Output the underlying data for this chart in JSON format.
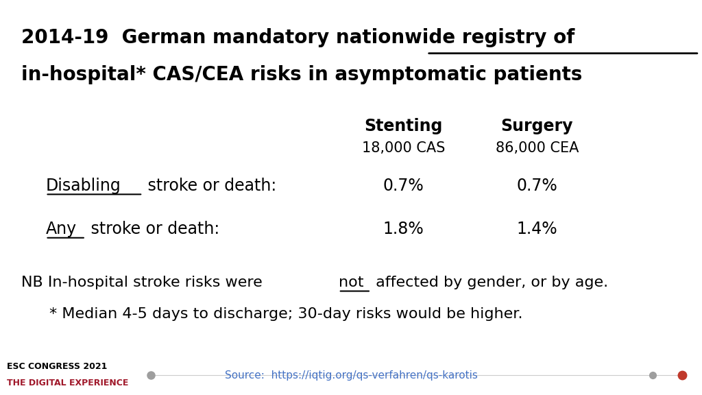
{
  "title_line1": "2014-19  German mandatory nationwide registry of",
  "title_line2": "in-hospital* CAS/CEA risks in asymptomatic patients",
  "col1_header": "Stenting",
  "col2_header": "Surgery",
  "col1_subheader": "18,000 CAS",
  "col2_subheader": "86,000 CEA",
  "row1_underline": "Disabling",
  "row1_rest": " stroke or death:",
  "row1_col1": "0.7%",
  "row1_col2": "0.7%",
  "row2_underline": "Any",
  "row2_rest": " stroke or death:",
  "row2_col1": "1.8%",
  "row2_col2": "1.4%",
  "note1_pre": "NB In-hospital stroke risks were ",
  "note1_ul": "not",
  "note1_post": " affected by gender, or by age.",
  "note2": "* Median 4-5 days to discharge; 30-day risks would be higher.",
  "footer_line1": "ESC CONGRESS 2021",
  "footer_line2": "THE DIGITAL EXPERIENCE",
  "footer_source": "Source:  https://iqtig.org/qs-verfahren/qs-karotis",
  "bg_color": "#ffffff",
  "text_color": "#000000",
  "footer_red": "#a0182a",
  "source_blue": "#4472c4",
  "dot_gray": "#9e9e9e",
  "dot_red": "#c0392b",
  "title_fs": 20,
  "header_fs": 17,
  "subheader_fs": 15,
  "data_fs": 17,
  "note_fs": 16,
  "footer_fs": 9
}
